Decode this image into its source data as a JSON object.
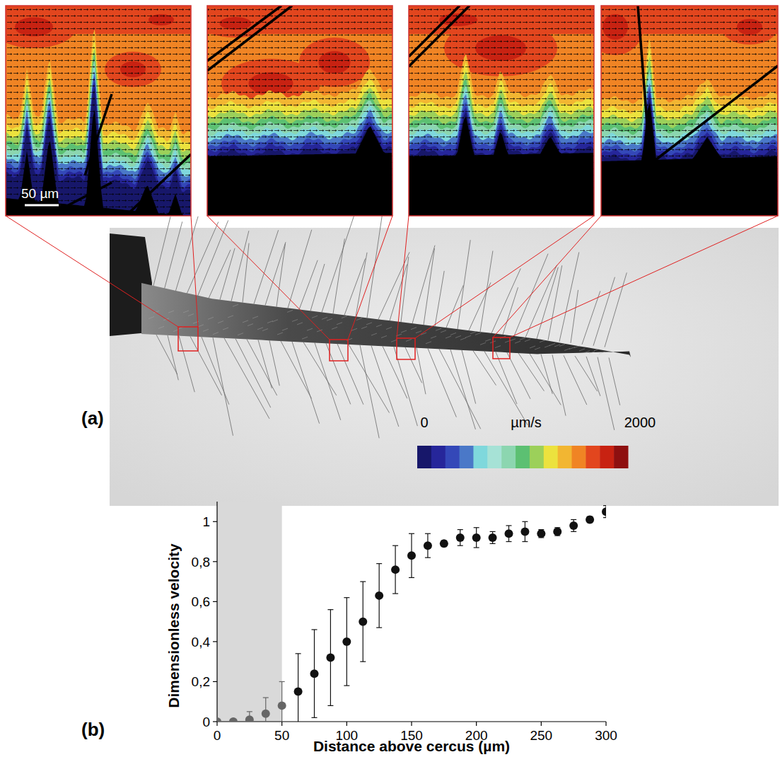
{
  "chart_data": {
    "type": "scatter",
    "x_label": "Distance above cercus (µm)",
    "y_label": "Dimensionless velocity",
    "x": [
      0,
      12.5,
      25,
      37.5,
      50,
      62.5,
      75,
      87.5,
      100,
      112.5,
      125,
      137.5,
      150,
      162.5,
      175,
      187.5,
      200,
      212.5,
      225,
      237.5,
      250,
      262.5,
      275,
      287.5,
      300
    ],
    "values": [
      0,
      0,
      0.01,
      0.04,
      0.08,
      0.15,
      0.24,
      0.32,
      0.4,
      0.5,
      0.63,
      0.76,
      0.83,
      0.88,
      0.89,
      0.92,
      0.92,
      0.92,
      0.94,
      0.95,
      0.94,
      0.95,
      0.98,
      1.01,
      1.05
    ],
    "errors": [
      0.005,
      0.005,
      0.04,
      0.08,
      0.12,
      0.19,
      0.22,
      0.24,
      0.22,
      0.2,
      0.16,
      0.12,
      0.11,
      0.06,
      0.015,
      0.04,
      0.05,
      0.03,
      0.04,
      0.05,
      0.02,
      0.02,
      0.03,
      0.015,
      0.03
    ],
    "shaded_region": [
      0,
      50
    ],
    "xlim": [
      0,
      300
    ],
    "ylim": [
      0,
      1.1
    ],
    "xticks": [
      0,
      50,
      100,
      150,
      200,
      250,
      300
    ],
    "yticks": [
      0,
      {
        "value": 0.2,
        "label": "0,2"
      },
      {
        "value": 0.4,
        "label": "0,4"
      },
      {
        "value": 0.6,
        "label": "0,6"
      },
      {
        "value": 0.8,
        "label": "0,8"
      },
      1
    ],
    "marker": "circle",
    "grid": false
  },
  "figure": {
    "panel_a": {
      "label": "(a)",
      "scale_bar": "50 µm",
      "colorbar": {
        "min": 0,
        "max": 2000,
        "unit": "µm/s"
      }
    },
    "panel_b": {
      "label": "(b)"
    }
  }
}
